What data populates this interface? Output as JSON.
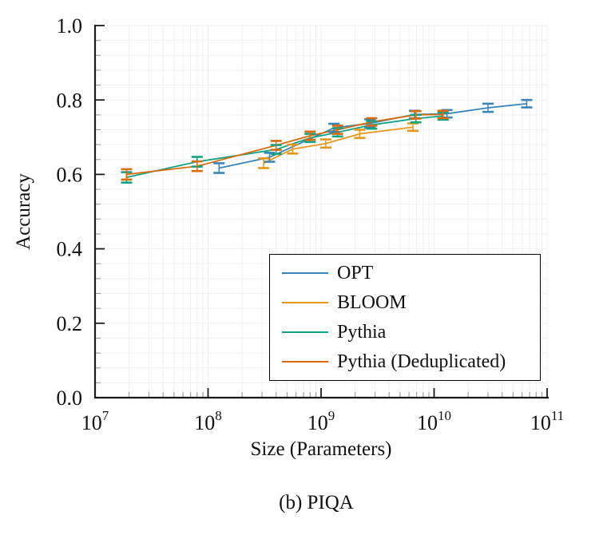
{
  "figure": {
    "caption": "(b) PIQA"
  },
  "chart_data": {
    "type": "line",
    "title": "(b) PIQA",
    "xlabel": "Size (Parameters)",
    "ylabel": "Accuracy",
    "xscale": "log",
    "xlim": [
      10000000,
      100000000000
    ],
    "ylim": [
      0.0,
      1.0
    ],
    "grid": true,
    "error_bars": true,
    "legend_position": "lower right inside",
    "x_ticks": [
      {
        "value": 7,
        "base": "10",
        "exp": "7"
      },
      {
        "value": 8,
        "base": "10",
        "exp": "8"
      },
      {
        "value": 9,
        "base": "10",
        "exp": "9"
      },
      {
        "value": 10,
        "base": "10",
        "exp": "10"
      },
      {
        "value": 11,
        "base": "10",
        "exp": "11"
      }
    ],
    "y_ticks": [
      {
        "value": 0.0,
        "label": "0.0"
      },
      {
        "value": 0.2,
        "label": "0.2"
      },
      {
        "value": 0.4,
        "label": "0.4"
      },
      {
        "value": 0.6,
        "label": "0.6"
      },
      {
        "value": 0.8,
        "label": "0.8"
      },
      {
        "value": 1.0,
        "label": "1.0"
      }
    ],
    "y_minor_step": 0.04,
    "series": [
      {
        "name": "OPT",
        "color": "#3785bb",
        "x": [
          125000000,
          350000000,
          1300000000,
          2700000000,
          6700000000,
          13000000000,
          30000000000,
          66000000000
        ],
        "y": [
          0.617,
          0.646,
          0.725,
          0.737,
          0.761,
          0.763,
          0.779,
          0.79
        ],
        "yerr": [
          0.013,
          0.012,
          0.011,
          0.011,
          0.01,
          0.01,
          0.011,
          0.01
        ]
      },
      {
        "name": "BLOOM",
        "color": "#e89619",
        "x": [
          310000000,
          560000000,
          1100000000,
          2200000000,
          6500000000
        ],
        "y": [
          0.63,
          0.668,
          0.683,
          0.709,
          0.727
        ],
        "yerr": [
          0.013,
          0.012,
          0.011,
          0.011,
          0.01
        ]
      },
      {
        "name": "Pythia",
        "color": "#12a284",
        "x": [
          19000000,
          80000000,
          400000000,
          800000000,
          1400000000,
          2800000000,
          6900000000,
          12000000000
        ],
        "y": [
          0.592,
          0.634,
          0.667,
          0.698,
          0.713,
          0.733,
          0.75,
          0.757
        ],
        "yerr": [
          0.014,
          0.013,
          0.012,
          0.011,
          0.011,
          0.01,
          0.01,
          0.01
        ]
      },
      {
        "name": "Pythia (Deduplicated)",
        "color": "#d96b0d",
        "x": [
          19000000,
          80000000,
          400000000,
          800000000,
          1400000000,
          2800000000,
          6900000000,
          12000000000
        ],
        "y": [
          0.6,
          0.622,
          0.678,
          0.704,
          0.72,
          0.741,
          0.76,
          0.761
        ],
        "yerr": [
          0.014,
          0.013,
          0.012,
          0.011,
          0.011,
          0.01,
          0.01,
          0.01
        ]
      }
    ]
  },
  "style": {
    "grid_color": "#f0f0f0",
    "axis_color": "#1a1a1a",
    "minor_tick_color": "#9a9a9a",
    "legend_border_color": "#000000"
  }
}
